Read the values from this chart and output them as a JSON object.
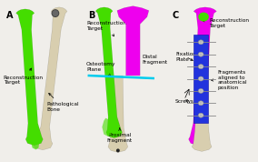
{
  "background_color": "#f0eeea",
  "panel_labels": [
    "A",
    "B",
    "C"
  ],
  "font_size_labels": 4.2,
  "font_size_panel": 7,
  "figsize": [
    2.84,
    1.78
  ],
  "dpi": 100,
  "green_color": "#44dd00",
  "magenta_color": "#ee00ee",
  "bone_color": "#d8ceaf",
  "bone_shadow": "#c5bb9a",
  "blue_plate_color": "#2233dd",
  "cyan_color": "#00ccee",
  "dark_knob": "#444444",
  "screw_color": "#cccccc",
  "screw_outline": "#888888"
}
